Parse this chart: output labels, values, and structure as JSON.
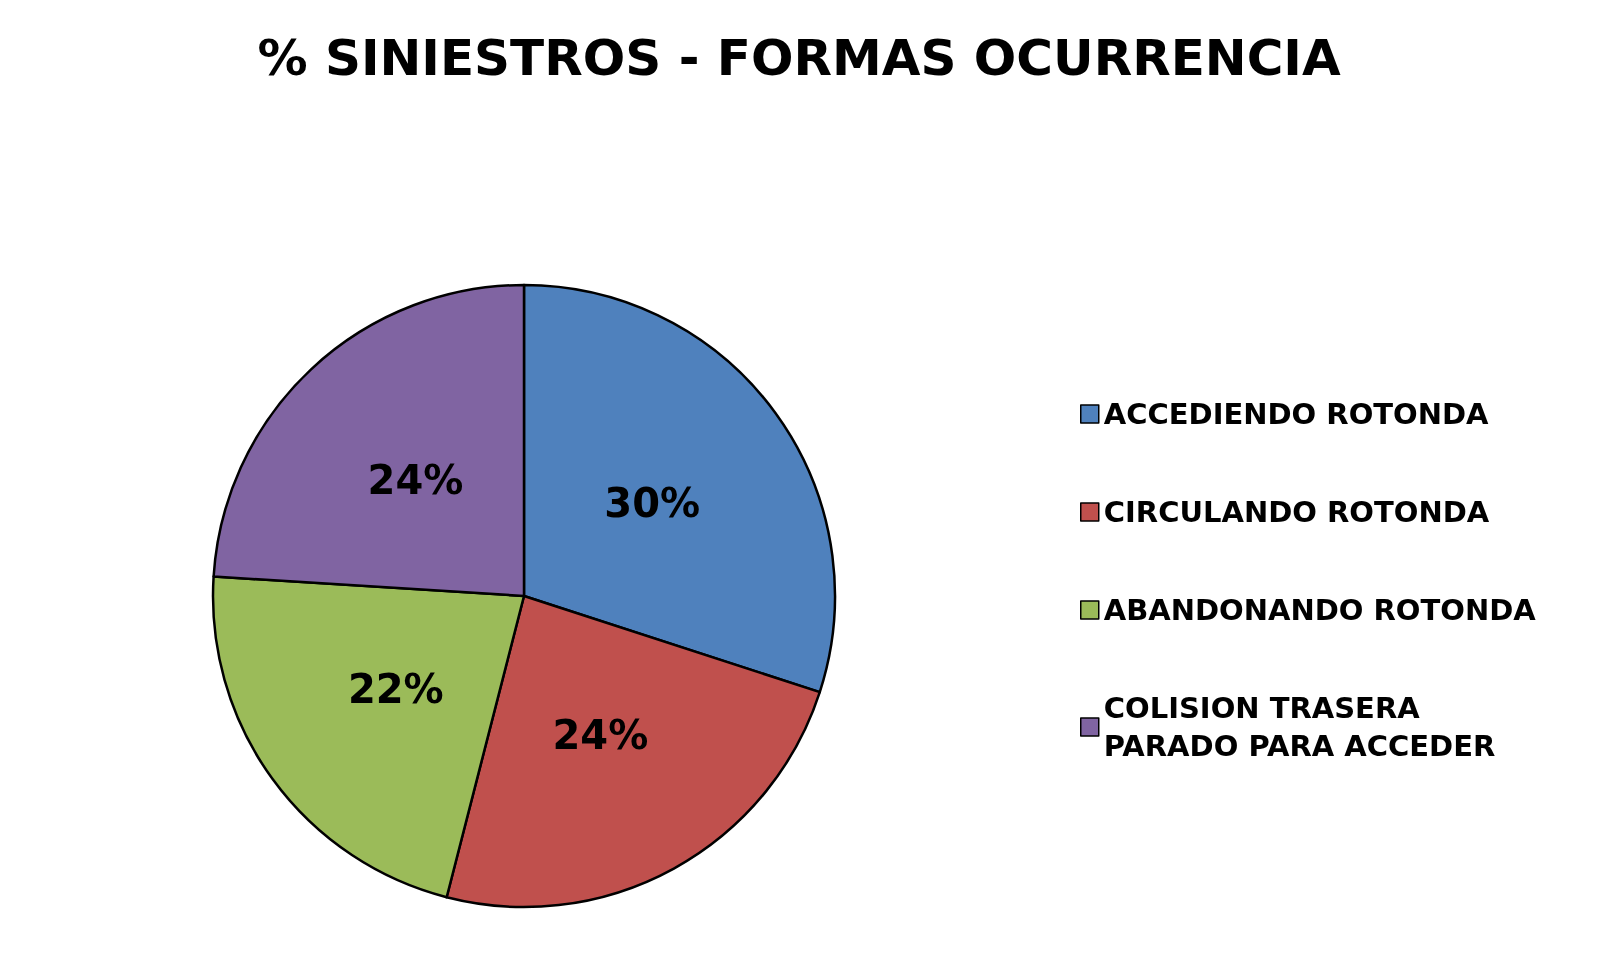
{
  "chart_data": {
    "type": "pie",
    "title": "% SINIESTROS - FORMAS OCURRENCIA",
    "categories": [
      "ACCEDIENDO ROTONDA",
      "CIRCULANDO ROTONDA",
      "ABANDONANDO ROTONDA",
      "COLISION TRASERA PARADO PARA ACCEDER"
    ],
    "values": [
      30,
      24,
      22,
      24
    ],
    "colors": [
      "#4f81bd",
      "#c0504d",
      "#9bbb59",
      "#8064a2"
    ],
    "value_labels": [
      "30%",
      "24%",
      "22%",
      "24%"
    ],
    "legend": "right"
  }
}
